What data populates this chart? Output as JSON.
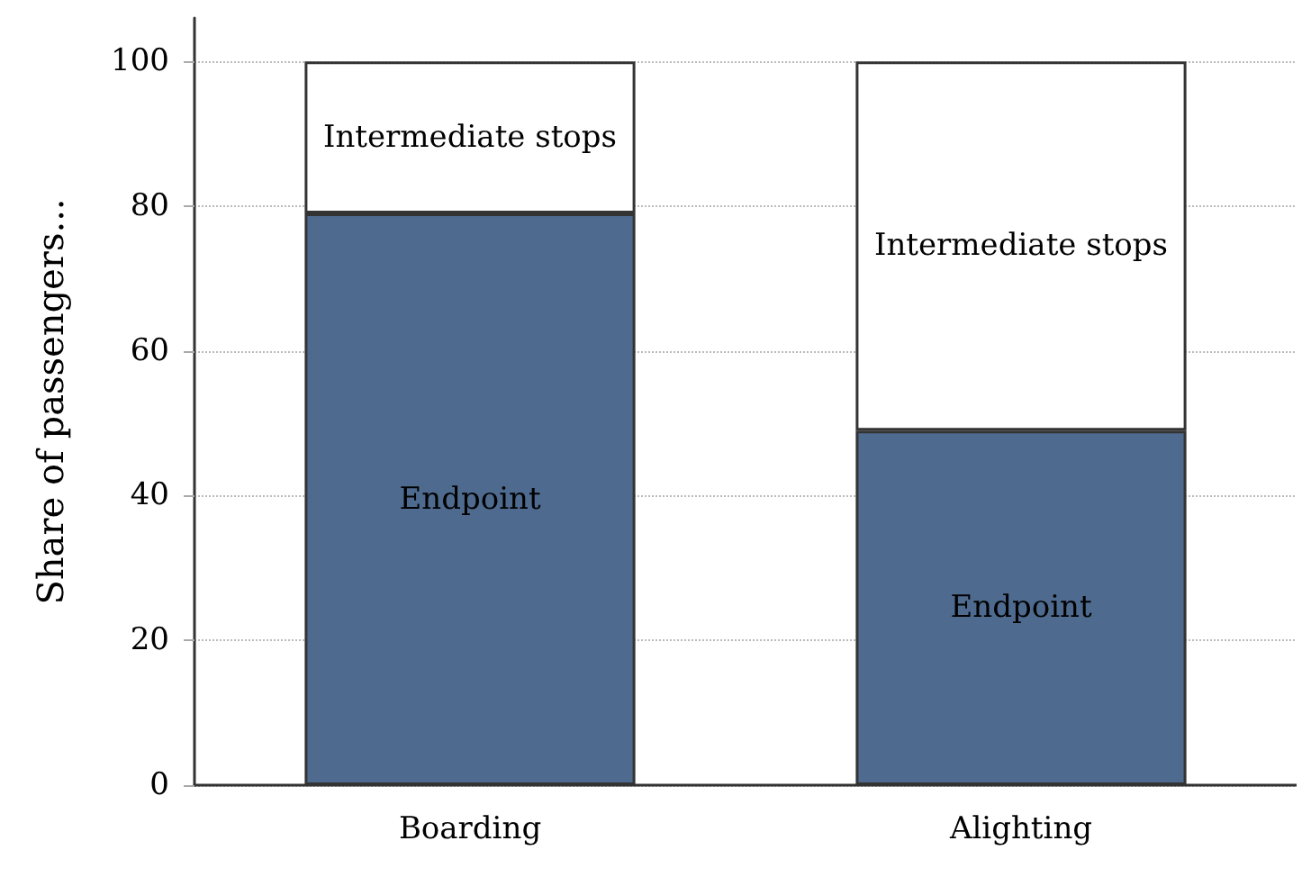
{
  "chart_data": {
    "type": "bar",
    "stacked": true,
    "ylabel": "Share of passengers...",
    "categories": [
      "Boarding",
      "Alighting"
    ],
    "series": [
      {
        "name": "Endpoint",
        "color": "#4e6b8f",
        "values": [
          79,
          49
        ]
      },
      {
        "name": "Intermediate stops",
        "color": "#ffffff",
        "values": [
          21,
          51
        ]
      }
    ],
    "ylim": [
      0,
      106
    ],
    "yticks": [
      0,
      20,
      40,
      60,
      80,
      100
    ],
    "grid": "y",
    "legend": false
  }
}
